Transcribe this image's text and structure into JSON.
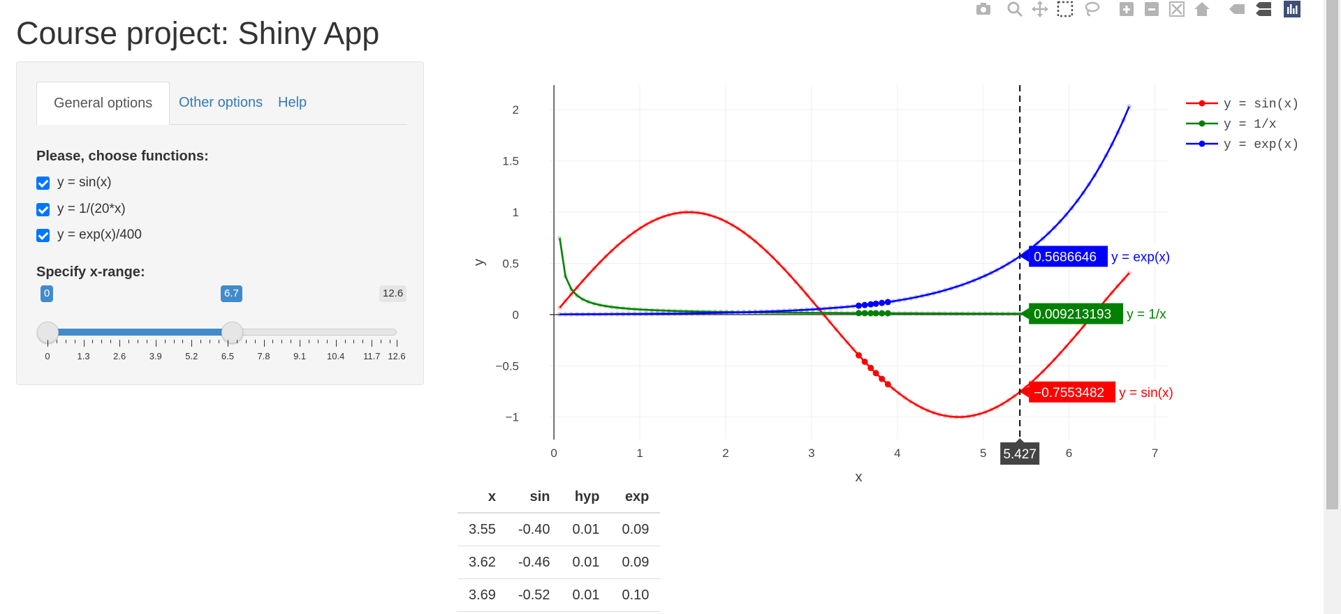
{
  "page": {
    "title": "Course project: Shiny App"
  },
  "tabs": [
    {
      "label": "General options",
      "active": true
    },
    {
      "label": "Other options",
      "active": false
    },
    {
      "label": "Help",
      "active": false
    }
  ],
  "functions": {
    "label": "Please, choose functions:",
    "options": [
      {
        "label": "y = sin(x)",
        "checked": true
      },
      {
        "label": "y = 1/(20*x)",
        "checked": true
      },
      {
        "label": "y = exp(x)/400",
        "checked": true
      }
    ]
  },
  "range": {
    "label": "Specify x-range:",
    "from": "0",
    "to": "6.7",
    "max": "12.6",
    "from_value": 0,
    "to_value": 6.7,
    "max_value": 12.6,
    "tick_labels": [
      "0",
      "1.3",
      "2.6",
      "3.9",
      "5.2",
      "6.5",
      "7.8",
      "9.1",
      "10.4",
      "11.7",
      "12.6"
    ]
  },
  "modebar": {
    "icons": [
      "camera-icon",
      "zoom-icon",
      "pan-icon",
      "box-select-icon",
      "lasso-icon",
      "zoom-in-icon",
      "zoom-out-icon",
      "autoscale-icon",
      "reset-axes-icon",
      "hover-closest-icon",
      "hover-compare-icon",
      "plotly-logo-icon"
    ]
  },
  "chart_data": {
    "type": "line",
    "xlabel": "x",
    "ylabel": "y",
    "xlim": [
      -0.05,
      7.15
    ],
    "ylim": [
      -1.22,
      2.24
    ],
    "x_ticks": [
      "0",
      "1",
      "2",
      "3",
      "4",
      "5",
      "6",
      "7"
    ],
    "y_ticks": [
      "−1",
      "−0.5",
      "0",
      "0.5",
      "1",
      "1.5",
      "2"
    ],
    "y_tick_values": [
      -1,
      -0.5,
      0,
      0.5,
      1,
      1.5,
      2
    ],
    "series": [
      {
        "name": "y = sin(x)",
        "color": "#ff0000",
        "formula": "sin"
      },
      {
        "name": "y = 1/x",
        "color": "#008000",
        "formula": "hyp"
      },
      {
        "name": "y = exp(x)",
        "color": "#0000ff",
        "formula": "exp"
      }
    ],
    "x_start": 0.067,
    "x_end": 6.7,
    "x_step": 0.067,
    "selected_x": [
      3.55,
      3.62,
      3.69,
      3.75,
      3.82,
      3.89
    ],
    "hover": {
      "x": "5.427",
      "x_value": 5.427,
      "labels": [
        {
          "value": "0.5686646",
          "name": "y = exp(x)",
          "color": "#0000ff",
          "y_value": 0.5686646
        },
        {
          "value": "0.009213193",
          "name": "y = 1/x",
          "color": "#008000",
          "y_value": 0.009213193
        },
        {
          "value": "−0.7553482",
          "name": "y = sin(x)",
          "color": "#ff0000",
          "y_value": -0.7553482
        }
      ]
    }
  },
  "table": {
    "headers": [
      "x",
      "sin",
      "hyp",
      "exp"
    ],
    "rows": [
      [
        "3.55",
        "-0.40",
        "0.01",
        "0.09"
      ],
      [
        "3.62",
        "-0.46",
        "0.01",
        "0.09"
      ],
      [
        "3.69",
        "-0.52",
        "0.01",
        "0.10"
      ]
    ]
  }
}
